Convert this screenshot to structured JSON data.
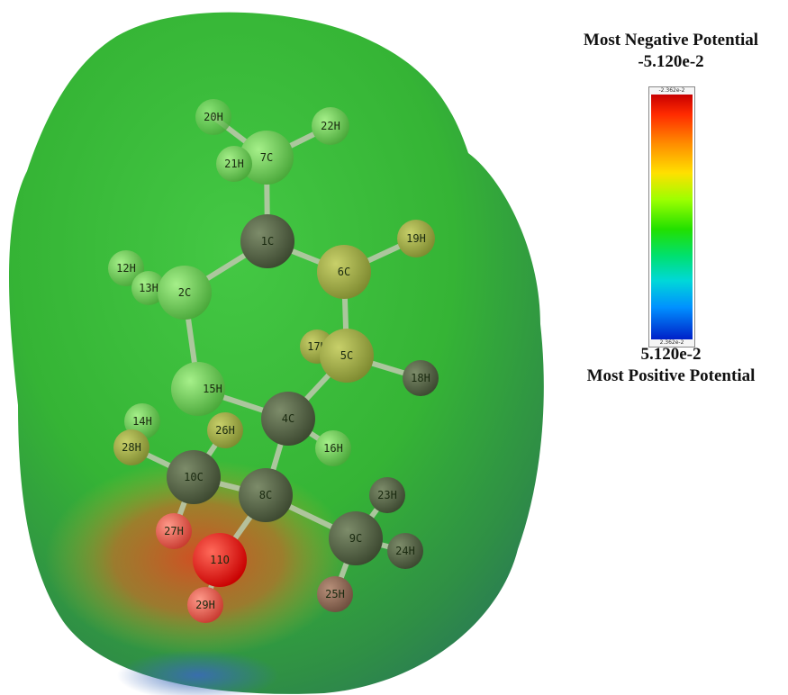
{
  "legend": {
    "top_title": "Most Negative Potential",
    "top_value": "-5.120e-2",
    "bottom_value": "5.120e-2",
    "bottom_title": "Most Positive Potential",
    "bar_top_label": "-2.362e-2",
    "bar_bottom_label": "2.362e-2"
  },
  "atom_colors": {
    "carbon": "#4a5a3e",
    "hydrogen_green": "#6fcf5a",
    "hydrogen_red": "#e05050",
    "hydrogen_brown": "#8a6a55",
    "oxygen": "#e01010",
    "surface": "#3fbf3f"
  },
  "atoms": [
    {
      "label": "1C"
    },
    {
      "label": "2C"
    },
    {
      "label": "4C"
    },
    {
      "label": "5C"
    },
    {
      "label": "6C"
    },
    {
      "label": "7C"
    },
    {
      "label": "8C"
    },
    {
      "label": "9C"
    },
    {
      "label": "10C"
    },
    {
      "label": "11O"
    },
    {
      "label": "12H"
    },
    {
      "label": "13H"
    },
    {
      "label": "14H"
    },
    {
      "label": "15H"
    },
    {
      "label": "16H"
    },
    {
      "label": "17H"
    },
    {
      "label": "18H"
    },
    {
      "label": "19H"
    },
    {
      "label": "20H"
    },
    {
      "label": "21H"
    },
    {
      "label": "22H"
    },
    {
      "label": "23H"
    },
    {
      "label": "24H"
    },
    {
      "label": "25H"
    },
    {
      "label": "26H"
    },
    {
      "label": "27H"
    },
    {
      "label": "28H"
    },
    {
      "label": "29H"
    }
  ]
}
